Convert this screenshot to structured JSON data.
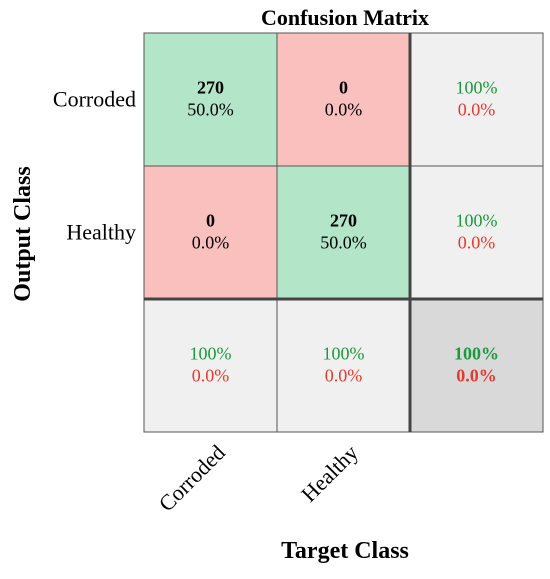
{
  "chart_data": {
    "type": "heatmap",
    "title": "Confusion Matrix",
    "xlabel": "Target Class",
    "ylabel": "Output Class",
    "x_categories": [
      "Corroded",
      "Healthy"
    ],
    "y_categories": [
      "Corroded",
      "Healthy"
    ],
    "cells": [
      [
        {
          "count": "270",
          "pct": "50.0%"
        },
        {
          "count": "0",
          "pct": "0.0%"
        }
      ],
      [
        {
          "count": "0",
          "pct": "0.0%"
        },
        {
          "count": "270",
          "pct": "50.0%"
        }
      ]
    ],
    "row_summary": [
      {
        "correct": "100%",
        "incorrect": "0.0%"
      },
      {
        "correct": "100%",
        "incorrect": "0.0%"
      }
    ],
    "col_summary": [
      {
        "correct": "100%",
        "incorrect": "0.0%"
      },
      {
        "correct": "100%",
        "incorrect": "0.0%"
      }
    ],
    "overall": {
      "correct": "100%",
      "incorrect": "0.0%"
    },
    "grid": true,
    "colors": {
      "correct_cell": "#b3e6c8",
      "incorrect_cell": "#f9c0bd",
      "summary_cell": "#f0f0f0",
      "overall_cell": "#d9d9d9",
      "correct_text": "#1a9a3c",
      "incorrect_text": "#e8392d"
    }
  }
}
